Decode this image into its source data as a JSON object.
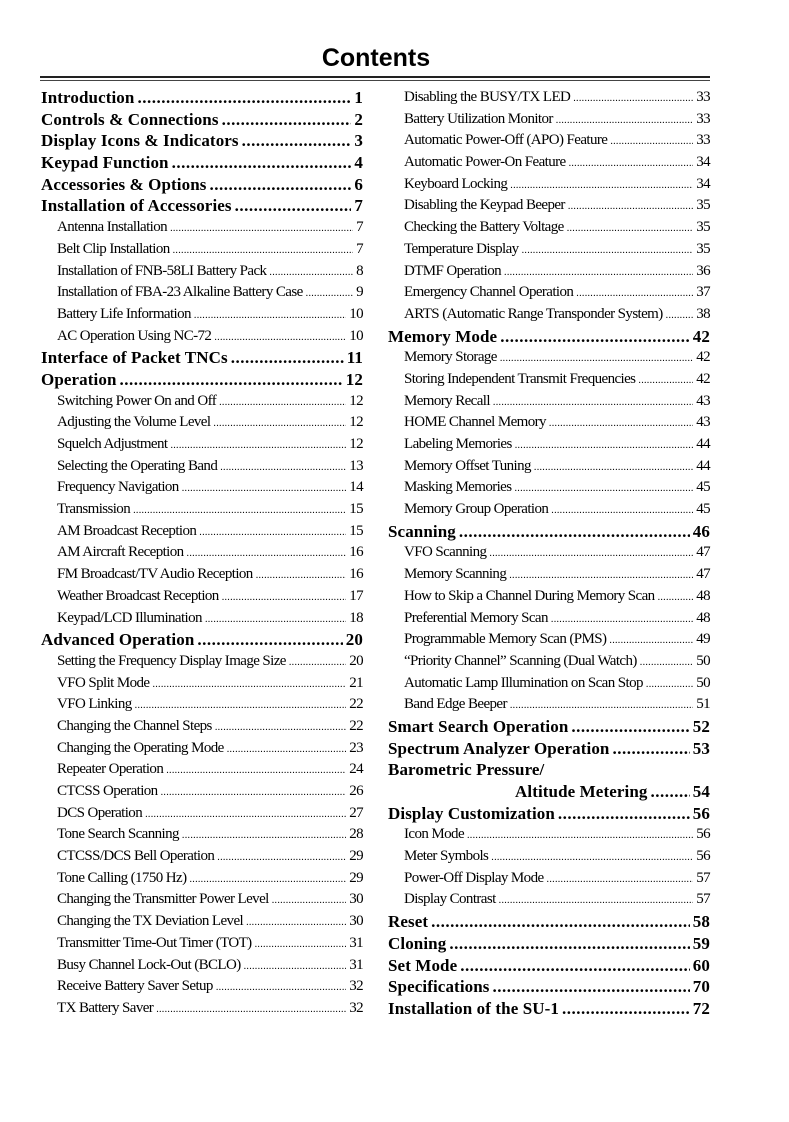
{
  "title": "Contents",
  "left_column": [
    {
      "label": "Introduction",
      "page": "1",
      "level": "main"
    },
    {
      "label": "Controls & Connections",
      "page": "2",
      "level": "main"
    },
    {
      "label": "Display Icons & Indicators",
      "page": "3",
      "level": "main"
    },
    {
      "label": "Keypad Function",
      "page": "4",
      "level": "main"
    },
    {
      "label": "Accessories & Options",
      "page": "6",
      "level": "main"
    },
    {
      "label": "Installation of Accessories",
      "page": "7",
      "level": "main"
    },
    {
      "label": "Antenna Installation",
      "page": "7",
      "level": "sub"
    },
    {
      "label": "Belt Clip Installation",
      "page": "7",
      "level": "sub"
    },
    {
      "label": "Installation of FNB-58LI Battery Pack",
      "page": "8",
      "level": "sub"
    },
    {
      "label": "Installation of FBA-23 Alkaline Battery Case",
      "page": "9",
      "level": "sub"
    },
    {
      "label": "Battery Life Information",
      "page": "10",
      "level": "sub"
    },
    {
      "label": "AC Operation Using NC-72",
      "page": "10",
      "level": "sub"
    },
    {
      "label": "Interface of Packet TNCs",
      "page": "11",
      "level": "main"
    },
    {
      "label": "Operation",
      "page": "12",
      "level": "main"
    },
    {
      "label": "Switching Power On and Off",
      "page": "12",
      "level": "sub"
    },
    {
      "label": "Adjusting the Volume Level",
      "page": "12",
      "level": "sub"
    },
    {
      "label": "Squelch Adjustment",
      "page": "12",
      "level": "sub"
    },
    {
      "label": "Selecting the Operating Band",
      "page": "13",
      "level": "sub"
    },
    {
      "label": "Frequency Navigation",
      "page": "14",
      "level": "sub"
    },
    {
      "label": "Transmission",
      "page": "15",
      "level": "sub"
    },
    {
      "label": "AM Broadcast Reception",
      "page": "15",
      "level": "sub"
    },
    {
      "label": "AM Aircraft Reception",
      "page": "16",
      "level": "sub"
    },
    {
      "label": "FM Broadcast/TV Audio Reception",
      "page": "16",
      "level": "sub"
    },
    {
      "label": "Weather Broadcast Reception",
      "page": "17",
      "level": "sub"
    },
    {
      "label": "Keypad/LCD Illumination",
      "page": "18",
      "level": "sub"
    },
    {
      "label": "Advanced Operation",
      "page": "20",
      "level": "main"
    },
    {
      "label": "Setting the Frequency Display Image Size",
      "page": "20",
      "level": "sub"
    },
    {
      "label": "VFO Split Mode",
      "page": "21",
      "level": "sub"
    },
    {
      "label": "VFO Linking",
      "page": "22",
      "level": "sub"
    },
    {
      "label": "Changing the Channel Steps",
      "page": "22",
      "level": "sub"
    },
    {
      "label": "Changing the Operating Mode",
      "page": "23",
      "level": "sub"
    },
    {
      "label": "Repeater Operation",
      "page": "24",
      "level": "sub"
    },
    {
      "label": "CTCSS Operation",
      "page": "26",
      "level": "sub"
    },
    {
      "label": "DCS Operation",
      "page": "27",
      "level": "sub"
    },
    {
      "label": "Tone Search Scanning",
      "page": "28",
      "level": "sub"
    },
    {
      "label": "CTCSS/DCS Bell Operation",
      "page": "29",
      "level": "sub"
    },
    {
      "label": "Tone Calling (1750 Hz)",
      "page": "29",
      "level": "sub"
    },
    {
      "label": "Changing the Transmitter Power Level",
      "page": "30",
      "level": "sub"
    },
    {
      "label": "Changing the TX Deviation Level",
      "page": "30",
      "level": "sub"
    },
    {
      "label": "Transmitter Time-Out Timer (TOT)",
      "page": "31",
      "level": "sub"
    },
    {
      "label": "Busy Channel Lock-Out (BCLO)",
      "page": "31",
      "level": "sub"
    },
    {
      "label": "Receive Battery Saver Setup",
      "page": "32",
      "level": "sub"
    },
    {
      "label": "TX Battery Saver",
      "page": "32",
      "level": "sub"
    }
  ],
  "right_column": [
    {
      "label": "Disabling the BUSY/TX LED",
      "page": "33",
      "level": "sub"
    },
    {
      "label": "Battery Utilization Monitor",
      "page": "33",
      "level": "sub"
    },
    {
      "label": "Automatic Power-Off (APO) Feature",
      "page": "33",
      "level": "sub"
    },
    {
      "label": "Automatic Power-On Feature",
      "page": "34",
      "level": "sub"
    },
    {
      "label": "Keyboard Locking",
      "page": "34",
      "level": "sub"
    },
    {
      "label": "Disabling the Keypad Beeper",
      "page": "35",
      "level": "sub"
    },
    {
      "label": "Checking the Battery Voltage",
      "page": "35",
      "level": "sub"
    },
    {
      "label": "Temperature Display",
      "page": "35",
      "level": "sub"
    },
    {
      "label": "DTMF Operation",
      "page": "36",
      "level": "sub"
    },
    {
      "label": "Emergency Channel Operation",
      "page": "37",
      "level": "sub"
    },
    {
      "label": "ARTS (Automatic Range Transponder System)",
      "page": "38",
      "level": "sub"
    },
    {
      "label": "Memory Mode",
      "page": "42",
      "level": "main"
    },
    {
      "label": "Memory Storage",
      "page": "42",
      "level": "sub"
    },
    {
      "label": "Storing Independent Transmit Frequencies",
      "page": "42",
      "level": "sub"
    },
    {
      "label": "Memory Recall",
      "page": "43",
      "level": "sub"
    },
    {
      "label": "HOME Channel Memory",
      "page": "43",
      "level": "sub"
    },
    {
      "label": "Labeling Memories",
      "page": "44",
      "level": "sub"
    },
    {
      "label": "Memory Offset Tuning",
      "page": "44",
      "level": "sub"
    },
    {
      "label": "Masking Memories",
      "page": "45",
      "level": "sub"
    },
    {
      "label": "Memory Group Operation",
      "page": "45",
      "level": "sub"
    },
    {
      "label": "Scanning",
      "page": "46",
      "level": "main"
    },
    {
      "label": "VFO Scanning",
      "page": "47",
      "level": "sub"
    },
    {
      "label": "Memory Scanning",
      "page": "47",
      "level": "sub"
    },
    {
      "label": "How to Skip a Channel During Memory Scan",
      "page": "48",
      "level": "sub"
    },
    {
      "label": "Preferential Memory Scan",
      "page": "48",
      "level": "sub"
    },
    {
      "label": "Programmable Memory Scan (PMS)",
      "page": "49",
      "level": "sub"
    },
    {
      "label": "“Priority Channel” Scanning (Dual Watch)",
      "page": "50",
      "level": "sub"
    },
    {
      "label": "Automatic Lamp Illumination on Scan Stop",
      "page": "50",
      "level": "sub"
    },
    {
      "label": "Band Edge Beeper",
      "page": "51",
      "level": "sub"
    },
    {
      "label": "Smart Search Operation",
      "page": "52",
      "level": "main"
    },
    {
      "label": "Spectrum Analyzer Operation",
      "page": "53",
      "level": "main"
    },
    {
      "label": "Barometric Pressure/",
      "page": "",
      "level": "main nolead"
    },
    {
      "label": "Altitude Metering",
      "page": "54",
      "level": "main cont"
    },
    {
      "label": "Display Customization",
      "page": "56",
      "level": "main"
    },
    {
      "label": "Icon Mode",
      "page": "56",
      "level": "sub"
    },
    {
      "label": "Meter Symbols",
      "page": "56",
      "level": "sub"
    },
    {
      "label": "Power-Off Display Mode",
      "page": "57",
      "level": "sub"
    },
    {
      "label": "Display Contrast",
      "page": "57",
      "level": "sub"
    },
    {
      "label": "Reset",
      "page": "58",
      "level": "main"
    },
    {
      "label": "Cloning",
      "page": "59",
      "level": "main"
    },
    {
      "label": "Set Mode",
      "page": "60",
      "level": "main"
    },
    {
      "label": "Specifications",
      "page": "70",
      "level": "main"
    },
    {
      "label": "Installation of the SU-1",
      "page": "72",
      "level": "main"
    }
  ]
}
